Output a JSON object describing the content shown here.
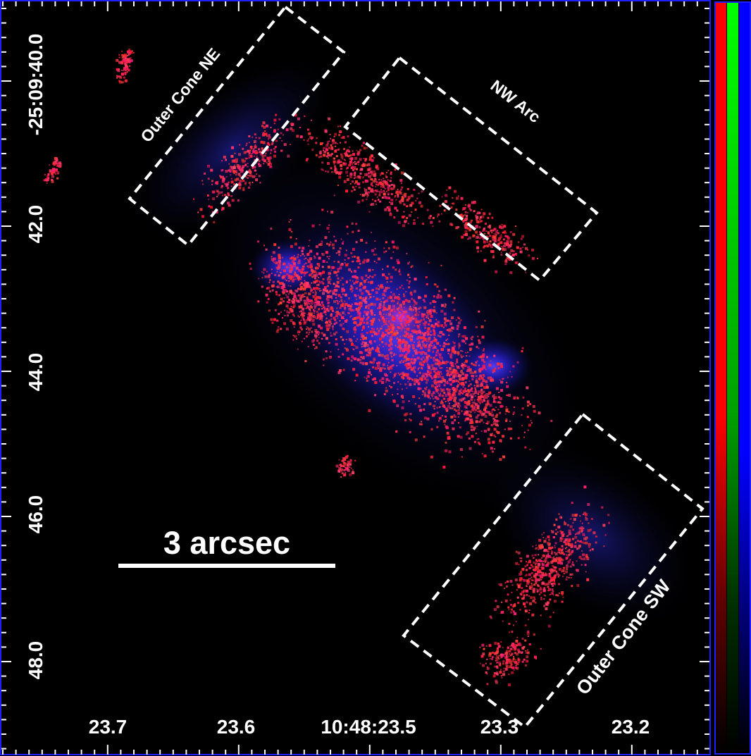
{
  "image": {
    "ra_labels": [
      "23.7",
      "23.6",
      "10:48:23.5",
      "23.3",
      "23.2"
    ],
    "dec_labels": [
      "-25:09:40.0",
      "42.0",
      "44.0",
      "46.0",
      "48.0"
    ],
    "scale_bar": {
      "label": "3 arcsec"
    },
    "regions": [
      "Outer Cone NE",
      "NW Arc",
      "Outer Cone SW"
    ],
    "colorbar": {
      "channels": [
        "red",
        "green",
        "blue"
      ]
    },
    "colors": {
      "background": "#000000",
      "frame": "#1a1aff",
      "emission_blue": "#2a2aff",
      "emission_red": "#ff2040"
    }
  }
}
